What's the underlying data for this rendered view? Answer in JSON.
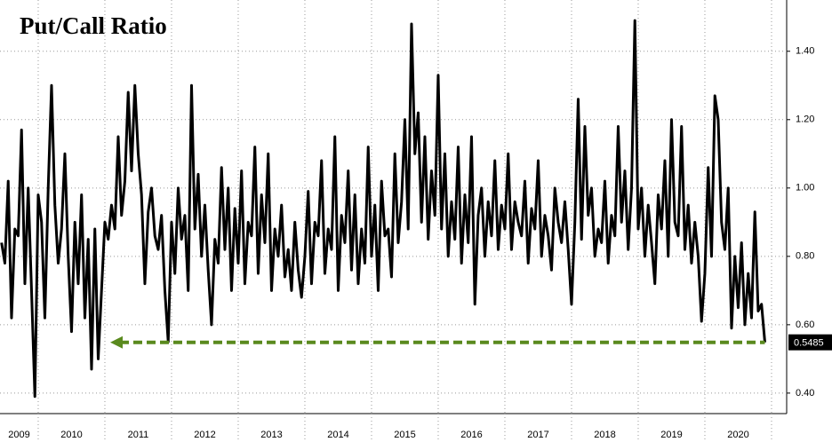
{
  "chart_data": {
    "type": "line",
    "title": "Put/Call Ratio",
    "color": "#000000",
    "annotation_color": "#5a8a1e",
    "x": [
      2009.45,
      2009.5,
      2009.55,
      2009.6,
      2009.65,
      2009.7,
      2009.75,
      2009.8,
      2009.85,
      2009.9,
      2009.95,
      2010.0,
      2010.05,
      2010.1,
      2010.15,
      2010.2,
      2010.25,
      2010.3,
      2010.35,
      2010.4,
      2010.45,
      2010.5,
      2010.55,
      2010.6,
      2010.65,
      2010.7,
      2010.75,
      2010.8,
      2010.85,
      2010.9,
      2010.95,
      2011.0,
      2011.05,
      2011.1,
      2011.15,
      2011.2,
      2011.25,
      2011.3,
      2011.35,
      2011.4,
      2011.45,
      2011.5,
      2011.55,
      2011.6,
      2011.65,
      2011.7,
      2011.75,
      2011.8,
      2011.85,
      2011.9,
      2011.95,
      2012.0,
      2012.05,
      2012.1,
      2012.15,
      2012.2,
      2012.25,
      2012.3,
      2012.35,
      2012.4,
      2012.45,
      2012.5,
      2012.55,
      2012.6,
      2012.65,
      2012.7,
      2012.75,
      2012.8,
      2012.85,
      2012.9,
      2012.95,
      2013.0,
      2013.05,
      2013.1,
      2013.15,
      2013.2,
      2013.25,
      2013.3,
      2013.35,
      2013.4,
      2013.45,
      2013.5,
      2013.55,
      2013.6,
      2013.65,
      2013.7,
      2013.75,
      2013.8,
      2013.85,
      2013.9,
      2013.95,
      2014.0,
      2014.05,
      2014.1,
      2014.15,
      2014.2,
      2014.25,
      2014.3,
      2014.35,
      2014.4,
      2014.45,
      2014.5,
      2014.55,
      2014.6,
      2014.65,
      2014.7,
      2014.75,
      2014.8,
      2014.85,
      2014.9,
      2014.95,
      2015.0,
      2015.05,
      2015.1,
      2015.15,
      2015.2,
      2015.25,
      2015.3,
      2015.35,
      2015.4,
      2015.45,
      2015.5,
      2015.55,
      2015.6,
      2015.65,
      2015.7,
      2015.75,
      2015.8,
      2015.85,
      2015.9,
      2015.95,
      2016.0,
      2016.05,
      2016.1,
      2016.15,
      2016.2,
      2016.25,
      2016.3,
      2016.35,
      2016.4,
      2016.45,
      2016.5,
      2016.55,
      2016.6,
      2016.65,
      2016.7,
      2016.75,
      2016.8,
      2016.85,
      2016.9,
      2016.95,
      2017.0,
      2017.05,
      2017.1,
      2017.15,
      2017.2,
      2017.25,
      2017.3,
      2017.35,
      2017.4,
      2017.45,
      2017.5,
      2017.55,
      2017.6,
      2017.65,
      2017.7,
      2017.75,
      2017.8,
      2017.85,
      2017.9,
      2017.95,
      2018.0,
      2018.05,
      2018.1,
      2018.15,
      2018.2,
      2018.25,
      2018.3,
      2018.35,
      2018.4,
      2018.45,
      2018.5,
      2018.55,
      2018.6,
      2018.65,
      2018.7,
      2018.75,
      2018.8,
      2018.85,
      2018.9,
      2018.95,
      2019.0,
      2019.05,
      2019.1,
      2019.15,
      2019.2,
      2019.25,
      2019.3,
      2019.35,
      2019.4,
      2019.45,
      2019.5,
      2019.55,
      2019.6,
      2019.65,
      2019.7,
      2019.75,
      2019.8,
      2019.85,
      2019.9,
      2019.95,
      2020.0,
      2020.05,
      2020.1,
      2020.15,
      2020.2,
      2020.25,
      2020.3,
      2020.35,
      2020.4,
      2020.45,
      2020.5,
      2020.55,
      2020.6,
      2020.65,
      2020.7,
      2020.75,
      2020.8,
      2020.85,
      2020.9
    ],
    "values": [
      0.84,
      0.78,
      1.02,
      0.62,
      0.88,
      0.86,
      1.17,
      0.72,
      1.0,
      0.7,
      0.39,
      0.98,
      0.9,
      0.62,
      1.0,
      1.3,
      0.95,
      0.78,
      0.88,
      1.1,
      0.8,
      0.58,
      0.9,
      0.72,
      0.98,
      0.62,
      0.85,
      0.47,
      0.88,
      0.5,
      0.7,
      0.9,
      0.85,
      0.95,
      0.88,
      1.15,
      0.92,
      1.02,
      1.28,
      1.05,
      1.3,
      1.1,
      0.98,
      0.72,
      0.93,
      1.0,
      0.86,
      0.82,
      0.92,
      0.7,
      0.55,
      0.9,
      0.75,
      1.0,
      0.85,
      0.92,
      0.7,
      1.3,
      0.88,
      1.04,
      0.8,
      0.95,
      0.76,
      0.6,
      0.85,
      0.78,
      1.06,
      0.82,
      1.0,
      0.7,
      0.94,
      0.78,
      1.05,
      0.72,
      0.9,
      0.86,
      1.12,
      0.75,
      0.98,
      0.84,
      1.1,
      0.7,
      0.88,
      0.8,
      0.95,
      0.74,
      0.82,
      0.7,
      0.9,
      0.76,
      0.68,
      0.8,
      0.99,
      0.72,
      0.9,
      0.86,
      1.08,
      0.75,
      0.88,
      0.82,
      1.15,
      0.7,
      0.92,
      0.84,
      1.05,
      0.76,
      0.98,
      0.72,
      0.88,
      0.78,
      1.12,
      0.8,
      0.95,
      0.7,
      1.02,
      0.86,
      0.88,
      0.74,
      1.1,
      0.84,
      0.96,
      1.2,
      0.88,
      1.48,
      1.1,
      1.22,
      0.9,
      1.15,
      0.85,
      1.05,
      0.92,
      1.33,
      0.88,
      1.1,
      0.8,
      0.96,
      0.85,
      1.12,
      0.78,
      0.98,
      0.84,
      1.15,
      0.66,
      0.92,
      1.0,
      0.8,
      0.96,
      0.86,
      1.08,
      0.82,
      0.95,
      0.88,
      1.1,
      0.82,
      0.96,
      0.9,
      0.86,
      1.02,
      0.78,
      0.94,
      0.88,
      1.08,
      0.8,
      0.92,
      0.86,
      0.76,
      1.0,
      0.9,
      0.84,
      0.96,
      0.82,
      0.66,
      0.9,
      1.26,
      0.85,
      1.18,
      0.92,
      1.0,
      0.8,
      0.88,
      0.84,
      1.02,
      0.78,
      0.92,
      0.86,
      1.18,
      0.9,
      1.05,
      0.82,
      1.0,
      1.49,
      0.88,
      1.0,
      0.8,
      0.95,
      0.84,
      0.72,
      0.98,
      0.88,
      1.08,
      0.8,
      1.2,
      0.9,
      0.86,
      1.18,
      0.82,
      0.95,
      0.78,
      0.9,
      0.8,
      0.61,
      0.75,
      1.06,
      0.8,
      1.27,
      1.2,
      0.9,
      0.82,
      1.0,
      0.59,
      0.8,
      0.65,
      0.84,
      0.6,
      0.75,
      0.62,
      0.93,
      0.64,
      0.66,
      0.5485
    ],
    "xlim": [
      2009.427,
      2021.227
    ],
    "xticks": [
      2010,
      2011,
      2012,
      2013,
      2014,
      2015,
      2016,
      2017,
      2018,
      2019,
      2020,
      2021
    ],
    "year_labels": [
      "2009",
      "2010",
      "2011",
      "2012",
      "2013",
      "2014",
      "2015",
      "2016",
      "2017",
      "2018",
      "2019",
      "2020"
    ],
    "ylim": [
      0.34,
      1.55
    ],
    "yticks": [
      {
        "value": 0.4,
        "label": "0.40"
      },
      {
        "value": 0.6,
        "label": "0.60"
      },
      {
        "value": 0.8,
        "label": "0.80"
      },
      {
        "value": 1.0,
        "label": "1.00"
      },
      {
        "value": 1.2,
        "label": "1.20"
      },
      {
        "value": 1.4,
        "label": "1.40"
      }
    ],
    "grid": true
  }
}
